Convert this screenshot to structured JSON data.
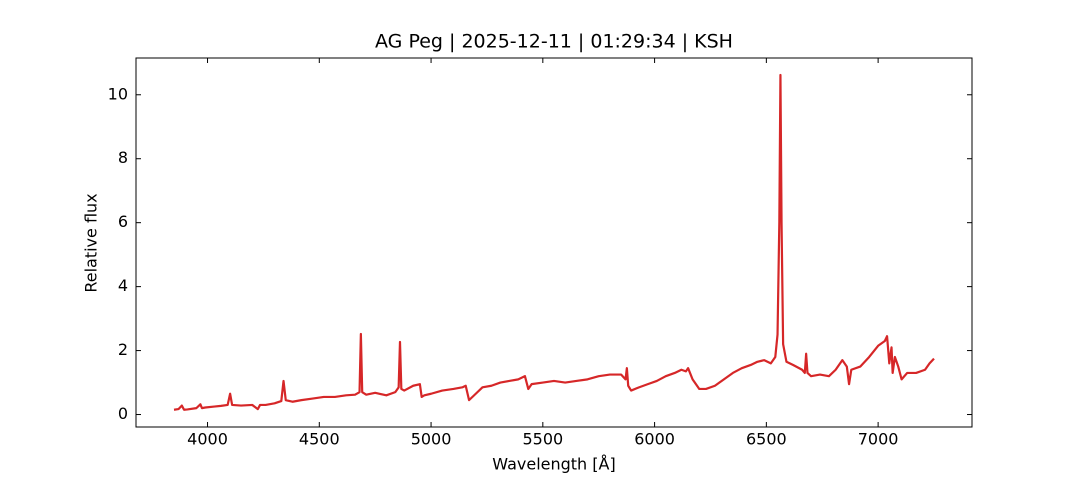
{
  "chart_data": {
    "type": "line",
    "title": "AG Peg | 2025-12-11 | 01:29:34 | KSH",
    "xlabel": "Wavelength [Å]",
    "ylabel": "Relative flux",
    "color": "#d62728",
    "xlim": [
      3680,
      7420
    ],
    "ylim": [
      -0.39,
      11.15
    ],
    "xticks": [
      4000,
      4500,
      5000,
      5500,
      6000,
      6500,
      7000
    ],
    "yticks": [
      0,
      2,
      4,
      6,
      8,
      10
    ],
    "x": [
      3850,
      3870,
      3885,
      3895,
      3910,
      3950,
      3968,
      3975,
      3990,
      4030,
      4060,
      4090,
      4101,
      4110,
      4150,
      4200,
      4225,
      4235,
      4260,
      4300,
      4330,
      4340,
      4350,
      4380,
      4420,
      4470,
      4520,
      4570,
      4620,
      4660,
      4680,
      4686,
      4692,
      4710,
      4750,
      4800,
      4840,
      4855,
      4861,
      4867,
      4880,
      4920,
      4950,
      4958,
      4970,
      5000,
      5050,
      5100,
      5140,
      5155,
      5170,
      5200,
      5230,
      5270,
      5310,
      5350,
      5390,
      5420,
      5435,
      5450,
      5500,
      5550,
      5600,
      5650,
      5700,
      5750,
      5800,
      5850,
      5870,
      5876,
      5882,
      5895,
      5930,
      5970,
      6010,
      6050,
      6090,
      6120,
      6140,
      6150,
      6170,
      6200,
      6230,
      6270,
      6310,
      6350,
      6390,
      6430,
      6460,
      6490,
      6520,
      6540,
      6550,
      6558,
      6563,
      6568,
      6575,
      6590,
      6620,
      6660,
      6672,
      6678,
      6684,
      6700,
      6740,
      6780,
      6810,
      6840,
      6860,
      6870,
      6880,
      6920,
      6960,
      7000,
      7030,
      7040,
      7050,
      7060,
      7065,
      7075,
      7090,
      7105,
      7130,
      7170,
      7210,
      7230,
      7250
    ],
    "values": [
      0.15,
      0.17,
      0.28,
      0.15,
      0.16,
      0.2,
      0.32,
      0.2,
      0.22,
      0.25,
      0.27,
      0.3,
      0.65,
      0.3,
      0.28,
      0.3,
      0.17,
      0.3,
      0.3,
      0.35,
      0.42,
      1.05,
      0.45,
      0.4,
      0.45,
      0.5,
      0.55,
      0.55,
      0.6,
      0.62,
      0.7,
      2.52,
      0.7,
      0.62,
      0.68,
      0.6,
      0.7,
      0.85,
      2.27,
      0.8,
      0.75,
      0.9,
      0.95,
      0.55,
      0.6,
      0.65,
      0.75,
      0.8,
      0.85,
      0.9,
      0.45,
      0.65,
      0.85,
      0.9,
      1.0,
      1.05,
      1.1,
      1.2,
      0.8,
      0.95,
      1.0,
      1.05,
      1.0,
      1.05,
      1.1,
      1.2,
      1.25,
      1.25,
      1.1,
      1.45,
      0.9,
      0.75,
      0.85,
      0.95,
      1.05,
      1.2,
      1.3,
      1.4,
      1.35,
      1.45,
      1.1,
      0.8,
      0.8,
      0.9,
      1.1,
      1.3,
      1.45,
      1.55,
      1.65,
      1.7,
      1.6,
      1.8,
      2.5,
      6.0,
      10.62,
      6.0,
      2.2,
      1.65,
      1.55,
      1.4,
      1.3,
      1.9,
      1.3,
      1.2,
      1.25,
      1.2,
      1.4,
      1.7,
      1.5,
      0.95,
      1.4,
      1.5,
      1.8,
      2.15,
      2.3,
      2.45,
      1.6,
      2.1,
      1.3,
      1.8,
      1.5,
      1.1,
      1.3,
      1.3,
      1.4,
      1.6,
      1.75
    ]
  }
}
